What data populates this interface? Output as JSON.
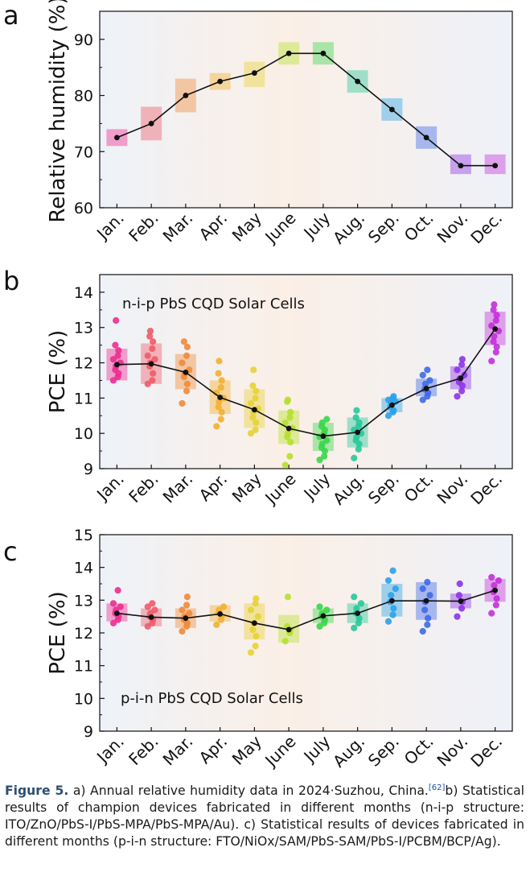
{
  "figure": {
    "caption": {
      "label": "Figure 5.",
      "text_a": " a) Annual relative humidity data in 2024·Suzhou, China.",
      "ref": "[62]",
      "text_rest": "b) Statistical results of champion devices fabricated in different months (n-i-p structure: ITO/ZnO/PbS-I/PbS-MPA/PbS-MPA/Au). c) Statistical results of devices fabricated in different months (p-i-n structure: FTO/NiOx/SAM/PbS-SAM/PbS-I/PCBM/BCP/Ag)."
    }
  },
  "colors": {
    "months": [
      "#ee2c8f",
      "#ef5a68",
      "#f08a3a",
      "#f2b030",
      "#e6d236",
      "#b5e02e",
      "#39d64a",
      "#26c99a",
      "#2aa2e8",
      "#3d6ae8",
      "#8d33e8",
      "#c330d8"
    ],
    "line": "#111111",
    "gradient_left": "#eef2f8",
    "gradient_mid": "#fbefe6",
    "gradient_right": "#eef1f8"
  },
  "chart_data": [
    {
      "panel": "a",
      "type": "line",
      "title": "",
      "xlabel": "",
      "ylabel": "Relative humidity (%)",
      "categories": [
        "Jan.",
        "Feb.",
        "Mar.",
        "Apr.",
        "May",
        "June",
        "July",
        "Aug.",
        "Sep.",
        "Oct.",
        "Nov.",
        "Dec."
      ],
      "ylim": [
        60,
        95
      ],
      "yticks": [
        60,
        70,
        80,
        90
      ],
      "series": [
        {
          "name": "Relative humidity",
          "values": [
            72.5,
            75,
            80,
            82.5,
            84,
            87.5,
            87.5,
            82.5,
            77.5,
            72.5,
            67.5,
            67.5
          ]
        }
      ],
      "boxes": [
        [
          71,
          74
        ],
        [
          72,
          78
        ],
        [
          77,
          83
        ],
        [
          81,
          84
        ],
        [
          81.5,
          86
        ],
        [
          85.5,
          89.5
        ],
        [
          85.5,
          89.5
        ],
        [
          80.5,
          84.5
        ],
        [
          75.5,
          79.5
        ],
        [
          70.5,
          74.5
        ],
        [
          66,
          69.5
        ],
        [
          66,
          69.5
        ]
      ],
      "annotation": ""
    },
    {
      "panel": "b",
      "type": "scatter",
      "title": "",
      "xlabel": "",
      "ylabel": "PCE (%)",
      "categories": [
        "Jan.",
        "Feb.",
        "Mar.",
        "Apr.",
        "May",
        "June",
        "July",
        "Aug.",
        "Sep.",
        "Oct.",
        "Nov.",
        "Dec."
      ],
      "ylim": [
        9,
        14.5
      ],
      "yticks": [
        9,
        10,
        11,
        12,
        13,
        14
      ],
      "annotation": "n-i-p PbS CQD Solar Cells",
      "series": [
        {
          "name": "Mean PCE",
          "values": [
            11.95,
            11.97,
            11.73,
            11.02,
            10.67,
            10.14,
            9.92,
            10.03,
            10.8,
            11.27,
            11.56,
            12.96
          ]
        }
      ],
      "boxes": [
        [
          11.5,
          12.4
        ],
        [
          11.4,
          12.55
        ],
        [
          11.25,
          12.25
        ],
        [
          10.55,
          11.5
        ],
        [
          10.15,
          11.25
        ],
        [
          9.7,
          10.65
        ],
        [
          9.5,
          10.3
        ],
        [
          9.6,
          10.45
        ],
        [
          10.6,
          11.0
        ],
        [
          11.05,
          11.55
        ],
        [
          11.25,
          11.9
        ],
        [
          12.5,
          13.45
        ]
      ],
      "points": [
        [
          11.5,
          11.6,
          11.7,
          11.8,
          11.9,
          12.0,
          12.1,
          12.2,
          12.35,
          12.5,
          13.2
        ],
        [
          11.4,
          11.5,
          11.7,
          11.9,
          12.0,
          12.1,
          12.2,
          12.4,
          12.6,
          12.75,
          12.9
        ],
        [
          10.85,
          11.2,
          11.4,
          11.6,
          11.7,
          11.8,
          12.0,
          12.2,
          12.45,
          12.6
        ],
        [
          10.2,
          10.4,
          10.6,
          10.75,
          10.9,
          11.0,
          11.15,
          11.3,
          11.5,
          11.7,
          12.05
        ],
        [
          10.0,
          10.1,
          10.3,
          10.45,
          10.6,
          10.7,
          10.85,
          11.0,
          11.2,
          11.35,
          11.8
        ],
        [
          9.1,
          9.35,
          9.75,
          9.9,
          10.0,
          10.15,
          10.3,
          10.45,
          10.6,
          10.9,
          10.95
        ],
        [
          9.25,
          9.35,
          9.5,
          9.6,
          9.7,
          9.8,
          9.9,
          10.0,
          10.1,
          10.2,
          10.3,
          10.4
        ],
        [
          9.3,
          9.55,
          9.7,
          9.8,
          9.9,
          10.0,
          10.1,
          10.2,
          10.3,
          10.45,
          10.65
        ],
        [
          10.5,
          10.6,
          10.65,
          10.75,
          10.85,
          10.9,
          10.95,
          11.0,
          11.05
        ],
        [
          10.95,
          11.05,
          11.15,
          11.25,
          11.4,
          11.5,
          11.65,
          11.8
        ],
        [
          11.05,
          11.2,
          11.35,
          11.45,
          11.55,
          11.65,
          11.8,
          11.95,
          12.1
        ],
        [
          12.05,
          12.3,
          12.45,
          12.6,
          12.75,
          12.9,
          13.05,
          13.2,
          13.35,
          13.5,
          13.65
        ]
      ]
    },
    {
      "panel": "c",
      "type": "scatter",
      "title": "",
      "xlabel": "",
      "ylabel": "PCE (%)",
      "categories": [
        "Jan.",
        "Feb.",
        "Mar.",
        "Apr.",
        "May",
        "June",
        "July",
        "Aug.",
        "Sep.",
        "Oct.",
        "Nov.",
        "Dec."
      ],
      "ylim": [
        9,
        15
      ],
      "yticks": [
        9,
        10,
        11,
        12,
        13,
        14,
        15
      ],
      "annotation": "p-i-n PbS CQD Solar Cells",
      "series": [
        {
          "name": "Mean PCE",
          "values": [
            12.6,
            12.48,
            12.45,
            12.58,
            12.3,
            12.1,
            12.52,
            12.6,
            12.98,
            12.98,
            12.97,
            13.3
          ]
        }
      ],
      "boxes": [
        [
          12.35,
          12.9
        ],
        [
          12.2,
          12.75
        ],
        [
          12.15,
          12.75
        ],
        [
          12.35,
          12.85
        ],
        [
          11.8,
          12.9
        ],
        [
          11.7,
          12.55
        ],
        [
          12.3,
          12.75
        ],
        [
          12.3,
          12.9
        ],
        [
          12.5,
          13.5
        ],
        [
          12.4,
          13.55
        ],
        [
          12.75,
          13.2
        ],
        [
          12.95,
          13.65
        ]
      ],
      "points": [
        [
          12.3,
          12.4,
          12.5,
          12.6,
          12.7,
          12.8,
          12.9,
          13.3
        ],
        [
          12.2,
          12.3,
          12.4,
          12.5,
          12.6,
          12.7,
          12.8,
          12.9
        ],
        [
          12.05,
          12.2,
          12.3,
          12.4,
          12.5,
          12.6,
          12.7,
          12.85,
          13.1
        ],
        [
          12.25,
          12.4,
          12.5,
          12.6,
          12.7,
          12.8
        ],
        [
          11.4,
          11.6,
          11.9,
          12.1,
          12.3,
          12.5,
          12.7,
          12.9,
          13.05
        ],
        [
          11.75,
          12.0,
          12.1,
          12.2,
          13.1
        ],
        [
          12.2,
          12.3,
          12.4,
          12.5,
          12.6,
          12.7,
          12.8
        ],
        [
          12.15,
          12.3,
          12.45,
          12.6,
          12.75,
          12.9,
          13.1
        ],
        [
          12.35,
          12.55,
          12.75,
          12.95,
          13.15,
          13.35,
          13.6,
          13.9
        ],
        [
          12.05,
          12.25,
          12.45,
          12.7,
          12.95,
          13.15,
          13.35,
          13.55
        ],
        [
          12.5,
          12.75,
          12.95,
          13.15,
          13.5
        ],
        [
          12.6,
          12.85,
          13.05,
          13.25,
          13.45,
          13.6,
          13.7
        ]
      ]
    }
  ]
}
